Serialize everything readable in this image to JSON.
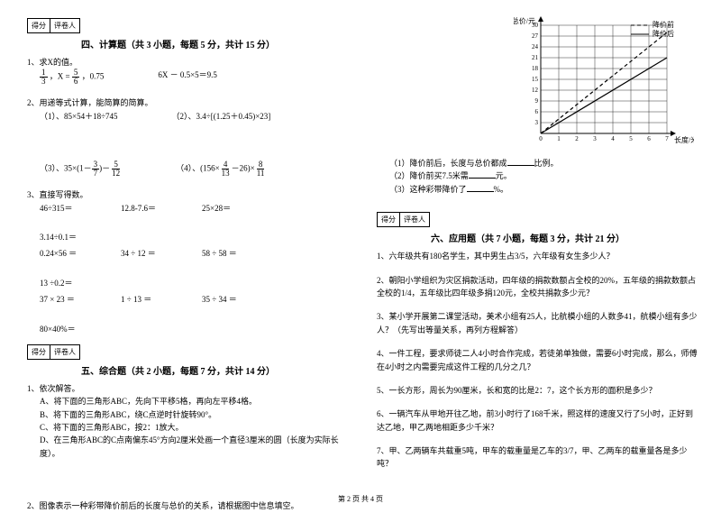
{
  "sections": {
    "s4": {
      "title": "四、计算题（共 3 小题，每题 5 分，共计 15 分）"
    },
    "s5": {
      "title": "五、综合题（共 2 小题，每题 7 分，共计 14 分）"
    },
    "s6": {
      "title": "六、应用题（共 7 小题，每题 3 分，共计 21 分）"
    }
  },
  "scorebox": {
    "score": "得分",
    "grader": "评卷人"
  },
  "q4_1": {
    "stem": "1、求X的值。",
    "eq1_a": "1",
    "eq1_b": "3",
    "eq1_mid": "，X =",
    "eq1_c": "5",
    "eq1_d": "6",
    "eq1_tail": "，0.75",
    "eq2": "6X － 0.5×5＝9.5"
  },
  "q4_2": {
    "stem": "2、用递等式计算，能简算的简算。",
    "p1": "（1）、85×54＋18÷745",
    "p2": "（2）、3.4÷[(1.25＋0.45)×23]",
    "p3_a": "（3）、35×(1－",
    "p3_n1": "3",
    "p3_d1": "7",
    "p3_mid": ")－",
    "p3_n2": "5",
    "p3_d2": "12",
    "p4_a": "（4）、(156×",
    "p4_n1": "4",
    "p4_d1": "13",
    "p4_mid": "－26)×",
    "p4_n2": "8",
    "p4_d2": "11"
  },
  "q4_3": {
    "stem": "3、直接写得数。",
    "r1": [
      "46÷315＝",
      "12.8-7.6＝",
      "25×28＝",
      "3.14÷0.1＝"
    ],
    "r2": [
      "0.24×56 ＝",
      "34 ÷ 12 ＝",
      "58 ÷ 58 ＝",
      "13 ÷0.2＝"
    ],
    "r3": [
      "37 × 23 ＝",
      "1 ÷ 13 ＝",
      "35 ÷ 34 ＝",
      "80×40%＝"
    ]
  },
  "q5_1": {
    "stem": "1、依次解答。",
    "a": "A、将下面的三角形ABC，先向下平移5格，再向左平移4格。",
    "b": "B、将下面的三角形ABC，绕C点逆时针旋转90°。",
    "c": "C、将下面的三角形ABC，按2：1放大。",
    "d": "D、在三角形ABC的C点南偏东45°方向2厘米处画一个直径3厘米的圆（长度为实际长度）。"
  },
  "q5_2": {
    "stem": "2、图像表示一种彩带降价前后的长度与总价的关系，请根据图中信息填空。"
  },
  "chart": {
    "ylabel": "总价/元",
    "xlabel": "长度/米",
    "legend1": "降价前",
    "legend2": "降价后",
    "xticks": [
      "0",
      "1",
      "2",
      "3",
      "4",
      "5",
      "6",
      "7"
    ],
    "yticks": [
      "3",
      "6",
      "9",
      "12",
      "15",
      "18",
      "21",
      "24",
      "27",
      "30"
    ],
    "line1": {
      "points": [
        [
          0,
          0
        ],
        [
          7,
          28
        ]
      ],
      "dash": "4,3",
      "color": "#000"
    },
    "line2": {
      "points": [
        [
          0,
          0
        ],
        [
          7,
          21
        ]
      ],
      "dash": "none",
      "color": "#000"
    },
    "grid_color": "#000",
    "background_color": "#ffffff"
  },
  "q_chart_sub": {
    "s1a": "（1）降价前后，长度与总价都成",
    "s1b": "比例。",
    "s2a": "（2）降价前买7.5米需",
    "s2b": "元。",
    "s3a": "（3）这种彩带降价了",
    "s3b": "%。"
  },
  "q6": {
    "q1": "1、六年级共有180名学生，其中男生占3/5，六年级有女生多少人？",
    "q2": "2、朝阳小学组织为灾区捐款活动，四年级的捐款数额占全校的20%，五年级的捐款数额占全校的1/4，五年级比四年级多捐120元，全校共捐款多少元？",
    "q3": "3、某小学开展第二课堂活动，美术小组有25人，比航模小组的人数多41，航模小组有多少人？（先写出等量关系，再列方程解答）",
    "q4": "4、一件工程，要求师徒二人4小时合作完成，若徒弟单独做，需要6小时完成，那么，师傅在4小时之内需要完成这件工程的几分之几？",
    "q5": "5、一长方形，周长为90厘米，长和宽的比是2：7，这个长方形的面积是多少？",
    "q6": "6、一辆汽车从甲地开往乙地，前3小时行了168千米，照这样的速度又行了5小时，正好到达乙地，甲乙两地相距多少千米？",
    "q7": "7、甲、乙两辆车共载重5吨，甲车的载重量是乙车的3/7，甲、乙两车的载重量各是多少吨？"
  },
  "footer": "第 2 页 共 4 页"
}
